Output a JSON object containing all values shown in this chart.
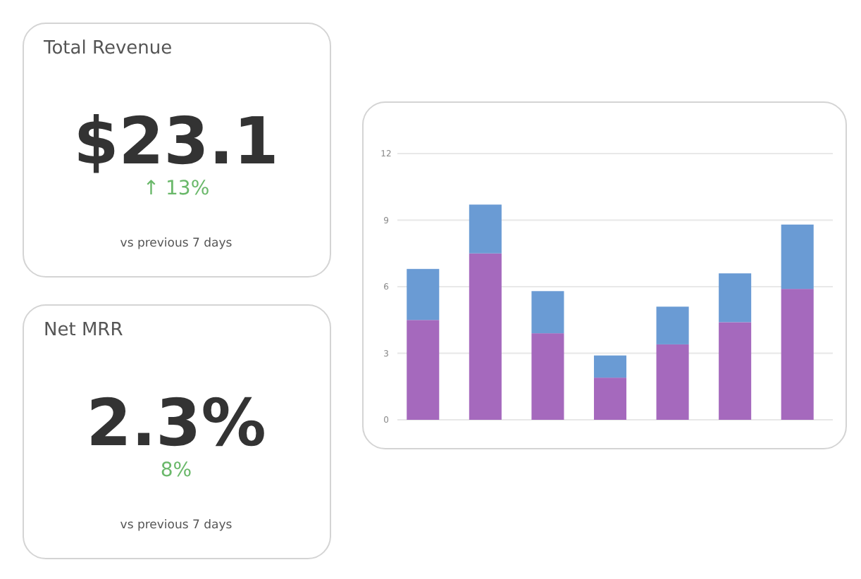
{
  "chart_data": [
    {
      "type": "other",
      "title": "Total Revenue",
      "annotations": [
        "$23.1",
        "↑ 13%",
        "vs previous 7 days"
      ]
    },
    {
      "type": "other",
      "title": "Net MRR",
      "annotations": [
        "2.3%",
        "8%",
        "vs previous 7 days"
      ]
    },
    {
      "type": "bar",
      "stacked": true,
      "categories": [
        null,
        null,
        null,
        null,
        null,
        null,
        null
      ],
      "series": [
        {
          "color": "#a569bd",
          "values": [
            4.5,
            7.5,
            3.9,
            1.9,
            3.4,
            4.4,
            5.9
          ]
        },
        {
          "color": "#6a9bd4",
          "values": [
            2.3,
            2.2,
            1.9,
            1.0,
            1.7,
            2.2,
            2.9
          ]
        }
      ],
      "ylim": [
        0,
        12
      ],
      "yticks": [
        0,
        3,
        6,
        9,
        12
      ],
      "grid": "y",
      "tick_labels": "y"
    }
  ]
}
